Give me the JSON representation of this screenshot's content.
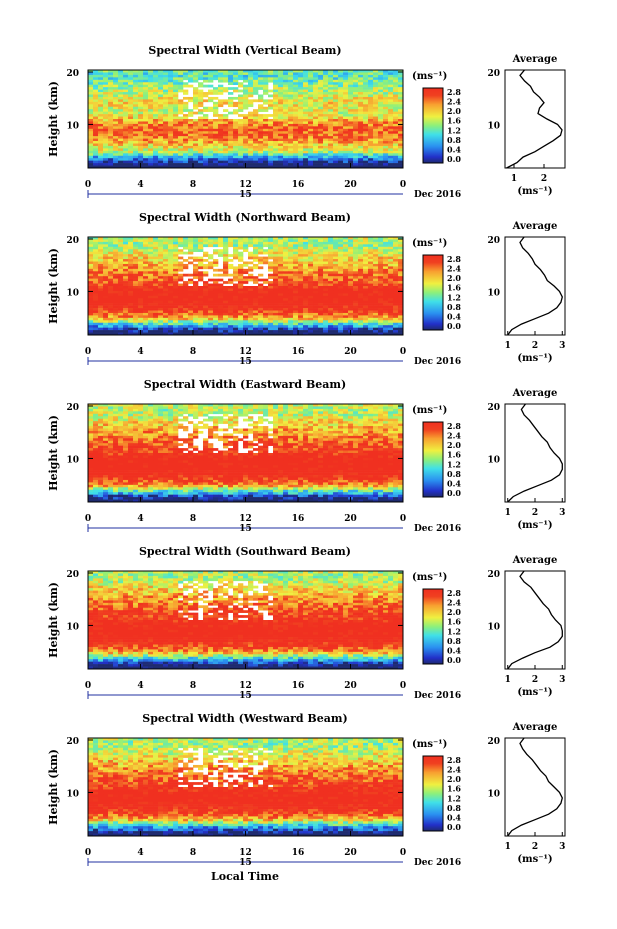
{
  "figure": {
    "xlabel": "Local Time",
    "date_suffix": "Dec 2016",
    "colorbar_unit": "(ms⁻¹)",
    "profile_title": "Average",
    "profile_xlabel": "(ms⁻¹)",
    "ylabel": "Height (km)"
  },
  "chart_data": [
    {
      "type": "heatmap",
      "title": "Spectral Width (Vertical Beam)",
      "ylabel": "Height (km)",
      "xticks": [
        "0",
        "4",
        "8",
        "12",
        "16",
        "20",
        "0"
      ],
      "xlim": [
        0,
        24
      ],
      "ylim": [
        2,
        20
      ],
      "yticks": [
        "20",
        "10"
      ],
      "day_label": "15",
      "colorbar": {
        "unit": "(ms⁻¹)",
        "ticks": [
          "2.8",
          "2.4",
          "2.0",
          "1.6",
          "1.2",
          "0.8",
          "0.4",
          "0.0"
        ],
        "range": [
          0,
          3.0
        ]
      },
      "profile": {
        "type": "line",
        "title": "Average",
        "xlabel": "(ms⁻¹)",
        "xticks": [
          "1",
          "2"
        ],
        "xlim": [
          0.7,
          2.7
        ],
        "y": [
          2,
          3,
          4,
          5,
          6,
          7,
          8,
          9,
          10,
          11,
          12,
          13,
          14,
          15,
          16,
          17,
          18,
          19,
          20
        ],
        "x": [
          0.75,
          1.1,
          1.3,
          1.7,
          2.0,
          2.3,
          2.55,
          2.6,
          2.45,
          2.1,
          1.8,
          1.85,
          2.0,
          1.85,
          1.65,
          1.55,
          1.35,
          1.2,
          1.35
        ]
      }
    },
    {
      "type": "heatmap",
      "title": "Spectral Width (Northward Beam)",
      "ylabel": "Height (km)",
      "xticks": [
        "0",
        "4",
        "8",
        "12",
        "16",
        "20",
        "0"
      ],
      "xlim": [
        0,
        24
      ],
      "ylim": [
        2,
        20
      ],
      "yticks": [
        "20",
        "10"
      ],
      "day_label": "15",
      "colorbar": {
        "unit": "(ms⁻¹)",
        "ticks": [
          "2.8",
          "2.4",
          "2.0",
          "1.6",
          "1.2",
          "0.8",
          "0.4",
          "0.0"
        ],
        "range": [
          0,
          3.0
        ]
      },
      "profile": {
        "type": "line",
        "title": "Average",
        "xlabel": "(ms⁻¹)",
        "xticks": [
          "1",
          "2",
          "3"
        ],
        "xlim": [
          0.9,
          3.1
        ],
        "y": [
          2,
          3,
          4,
          5,
          6,
          7,
          8,
          9,
          10,
          11,
          12,
          13,
          14,
          15,
          16,
          17,
          18,
          19,
          20
        ],
        "x": [
          1.0,
          1.15,
          1.5,
          2.0,
          2.5,
          2.8,
          2.95,
          3.0,
          2.9,
          2.7,
          2.45,
          2.35,
          2.2,
          2.0,
          1.9,
          1.75,
          1.55,
          1.45,
          1.6
        ]
      }
    },
    {
      "type": "heatmap",
      "title": "Spectral Width (Eastward Beam)",
      "ylabel": "Height (km)",
      "xticks": [
        "0",
        "4",
        "8",
        "12",
        "16",
        "20",
        "0"
      ],
      "xlim": [
        0,
        24
      ],
      "ylim": [
        2,
        20
      ],
      "yticks": [
        "20",
        "10"
      ],
      "day_label": "15",
      "colorbar": {
        "unit": "(ms⁻¹)",
        "ticks": [
          "2.8",
          "2.4",
          "2.0",
          "1.6",
          "1.2",
          "0.8",
          "0.4",
          "0.0"
        ],
        "range": [
          0,
          3.0
        ]
      },
      "profile": {
        "type": "line",
        "title": "Average",
        "xlabel": "(ms⁻¹)",
        "xticks": [
          "1",
          "2",
          "3"
        ],
        "xlim": [
          0.9,
          3.1
        ],
        "y": [
          2,
          3,
          4,
          5,
          6,
          7,
          8,
          9,
          10,
          11,
          12,
          13,
          14,
          15,
          16,
          17,
          18,
          19,
          20
        ],
        "x": [
          1.0,
          1.2,
          1.6,
          2.1,
          2.6,
          2.9,
          3.0,
          3.0,
          2.9,
          2.7,
          2.55,
          2.45,
          2.25,
          2.1,
          1.95,
          1.8,
          1.6,
          1.5,
          1.65
        ]
      }
    },
    {
      "type": "heatmap",
      "title": "Spectral Width (Southward Beam)",
      "ylabel": "Height (km)",
      "xticks": [
        "0",
        "4",
        "8",
        "12",
        "16",
        "20",
        "0"
      ],
      "xlim": [
        0,
        24
      ],
      "ylim": [
        2,
        20
      ],
      "yticks": [
        "20",
        "10"
      ],
      "day_label": "15",
      "colorbar": {
        "unit": "(ms⁻¹)",
        "ticks": [
          "2.8",
          "2.4",
          "2.0",
          "1.6",
          "1.2",
          "0.8",
          "0.4",
          "0.0"
        ],
        "range": [
          0,
          3.0
        ]
      },
      "profile": {
        "type": "line",
        "title": "Average",
        "xlabel": "(ms⁻¹)",
        "xticks": [
          "1",
          "2",
          "3"
        ],
        "xlim": [
          0.9,
          3.1
        ],
        "y": [
          2,
          3,
          4,
          5,
          6,
          7,
          8,
          9,
          10,
          11,
          12,
          13,
          14,
          15,
          16,
          17,
          18,
          19,
          20
        ],
        "x": [
          1.0,
          1.15,
          1.55,
          2.0,
          2.55,
          2.85,
          3.0,
          3.0,
          2.95,
          2.75,
          2.6,
          2.5,
          2.3,
          2.15,
          2.0,
          1.85,
          1.6,
          1.45,
          1.6
        ]
      }
    },
    {
      "type": "heatmap",
      "title": "Spectral Width (Westward Beam)",
      "ylabel": "Height (km)",
      "xticks": [
        "0",
        "4",
        "8",
        "12",
        "16",
        "20",
        "0"
      ],
      "xlim": [
        0,
        24
      ],
      "ylim": [
        2,
        20
      ],
      "yticks": [
        "20",
        "10"
      ],
      "day_label": "15",
      "colorbar": {
        "unit": "(ms⁻¹)",
        "ticks": [
          "2.8",
          "2.4",
          "2.0",
          "1.6",
          "1.2",
          "0.8",
          "0.4",
          "0.0"
        ],
        "range": [
          0,
          3.0
        ]
      },
      "profile": {
        "type": "line",
        "title": "Average",
        "xlabel": "(ms⁻¹)",
        "xticks": [
          "1",
          "2",
          "3"
        ],
        "xlim": [
          0.9,
          3.1
        ],
        "y": [
          2,
          3,
          4,
          5,
          6,
          7,
          8,
          9,
          10,
          11,
          12,
          13,
          14,
          15,
          16,
          17,
          18,
          19,
          20
        ],
        "x": [
          1.0,
          1.15,
          1.5,
          2.0,
          2.5,
          2.8,
          2.95,
          3.0,
          2.9,
          2.7,
          2.5,
          2.4,
          2.2,
          2.05,
          1.9,
          1.7,
          1.55,
          1.45,
          1.6
        ]
      }
    }
  ]
}
